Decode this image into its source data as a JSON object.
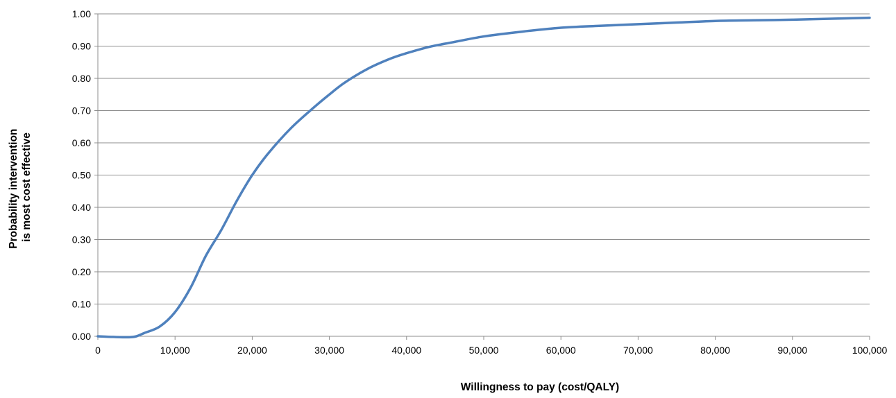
{
  "chart_data": {
    "type": "line",
    "xlabel": "Willingness to pay  (cost/QALY)",
    "ylabel_lines": [
      "Probability intervention",
      "is most cost effective"
    ],
    "xlim": [
      0,
      100000
    ],
    "ylim": [
      0,
      1
    ],
    "x_ticks": [
      0,
      10000,
      20000,
      30000,
      40000,
      50000,
      60000,
      70000,
      80000,
      90000,
      100000
    ],
    "x_tick_labels": [
      "0",
      "10,000",
      "20,000",
      "30,000",
      "40,000",
      "50,000",
      "60,000",
      "70,000",
      "80,000",
      "90,000",
      "100,000"
    ],
    "y_ticks": [
      0,
      0.1,
      0.2,
      0.3,
      0.4,
      0.5,
      0.6,
      0.7,
      0.8,
      0.9,
      1.0
    ],
    "y_tick_labels": [
      "0.00",
      "0.10",
      "0.20",
      "0.30",
      "0.40",
      "0.50",
      "0.60",
      "0.70",
      "0.80",
      "0.90",
      "1.00"
    ],
    "grid": "horizontal",
    "legend": "none",
    "series": [
      {
        "color": "#4f81bd",
        "x": [
          0,
          2000,
          4000,
          5000,
          6000,
          8000,
          10000,
          12000,
          14000,
          16000,
          18000,
          20000,
          22000,
          25000,
          28000,
          30000,
          32000,
          35000,
          38000,
          40000,
          43000,
          46000,
          50000,
          55000,
          60000,
          65000,
          70000,
          75000,
          80000,
          85000,
          90000,
          95000,
          100000
        ],
        "y": [
          0.0,
          -0.002,
          -0.003,
          0.0,
          0.01,
          0.03,
          0.075,
          0.15,
          0.25,
          0.33,
          0.42,
          0.5,
          0.565,
          0.645,
          0.71,
          0.75,
          0.787,
          0.83,
          0.862,
          0.878,
          0.898,
          0.912,
          0.93,
          0.945,
          0.957,
          0.963,
          0.968,
          0.973,
          0.978,
          0.98,
          0.982,
          0.985,
          0.988
        ]
      }
    ]
  }
}
